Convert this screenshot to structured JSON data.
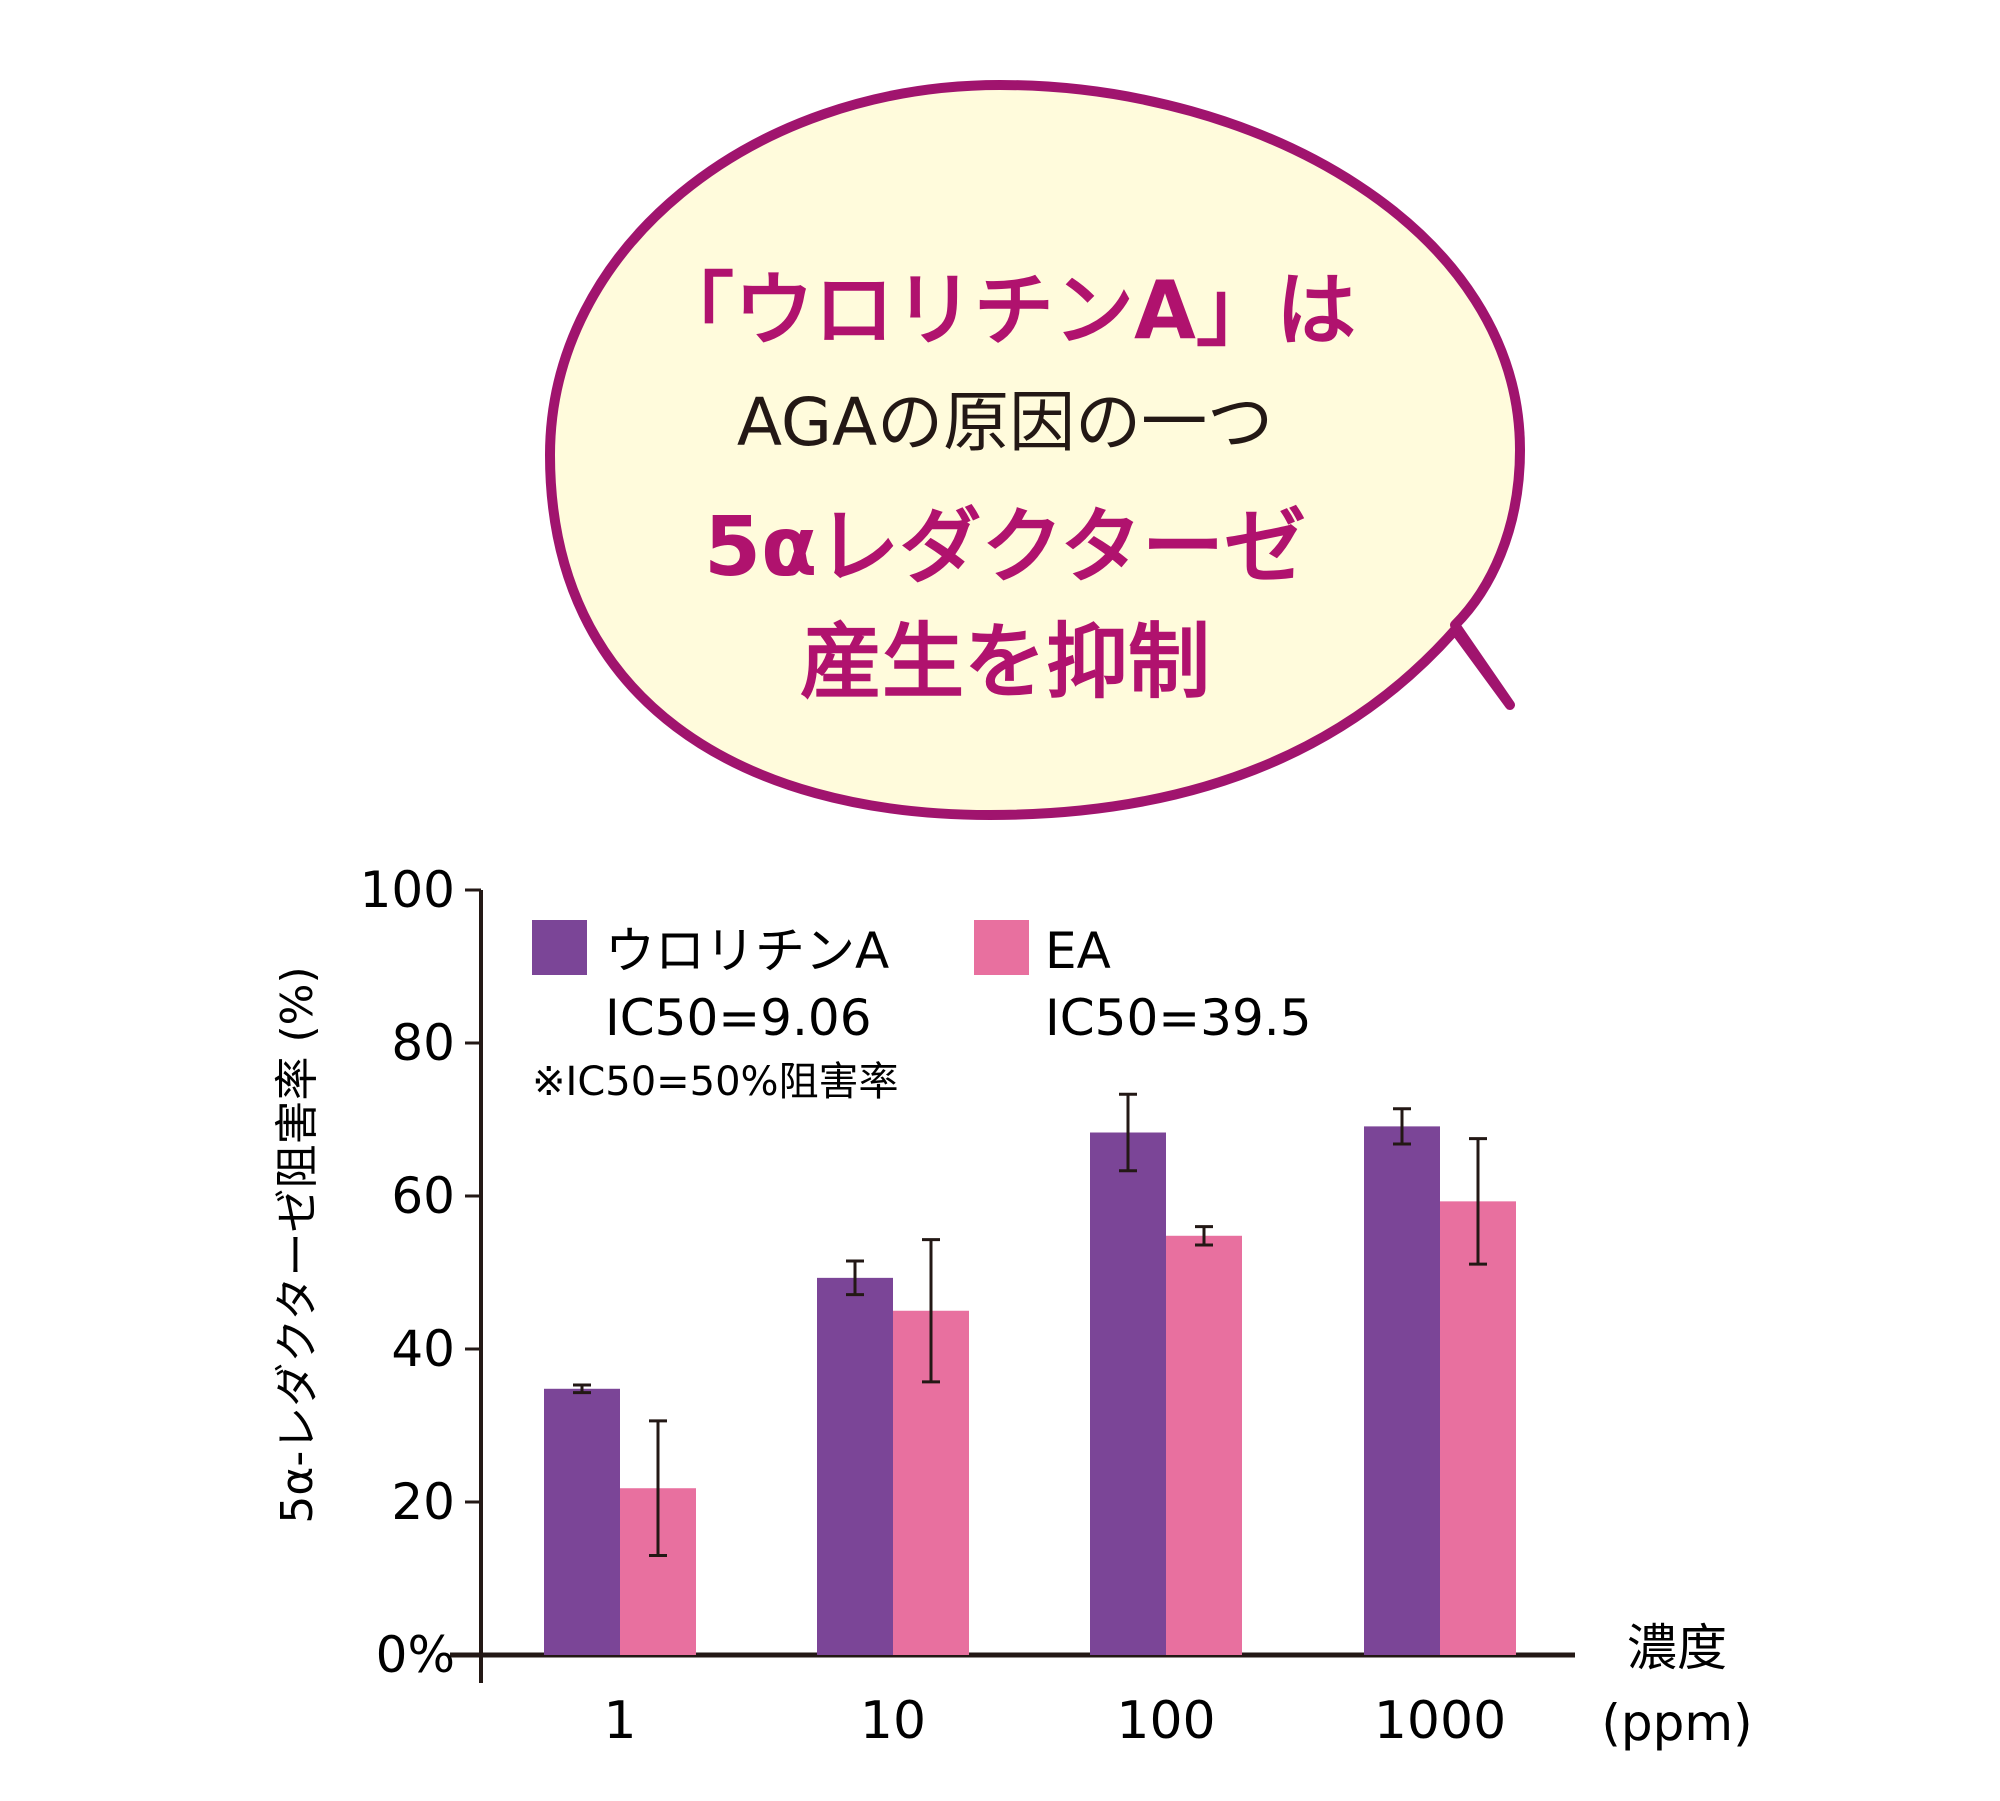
{
  "bubble": {
    "line1": "「ウロリチンA」は",
    "line2": "AGAの原因の一つ",
    "line3": "5αレダクターゼ",
    "line4": "産生を抑制",
    "fill_color": "#fffbdc",
    "border_color": "#a0146e",
    "accent_color": "#b0126e"
  },
  "chart_data": {
    "type": "bar",
    "ylabel": "5α-レダクターゼ阻害率 (%)",
    "xlabel_line1": "濃度",
    "xlabel_line2": "(ppm)",
    "ylim": [
      0,
      100
    ],
    "yticks": [
      {
        "value": 0,
        "label": "0%"
      },
      {
        "value": 20,
        "label": "20"
      },
      {
        "value": 40,
        "label": "40"
      },
      {
        "value": 60,
        "label": "60"
      },
      {
        "value": 80,
        "label": "80"
      },
      {
        "value": 100,
        "label": "100"
      }
    ],
    "categories": [
      "1",
      "10",
      "100",
      "1000"
    ],
    "series": [
      {
        "name": "ウロリチンA",
        "ic50": "IC50=9.06",
        "color": "#7b4597",
        "values": [
          34.8,
          49.3,
          68.3,
          69.1
        ],
        "errors": [
          0.5,
          2.2,
          5.0,
          2.3
        ]
      },
      {
        "name": "EA",
        "ic50": "IC50=39.5",
        "color": "#e8709f",
        "values": [
          21.8,
          45.0,
          54.8,
          59.3
        ],
        "errors": [
          8.8,
          9.3,
          1.2,
          8.2
        ]
      }
    ],
    "note": "※IC50=50%阻害率"
  }
}
